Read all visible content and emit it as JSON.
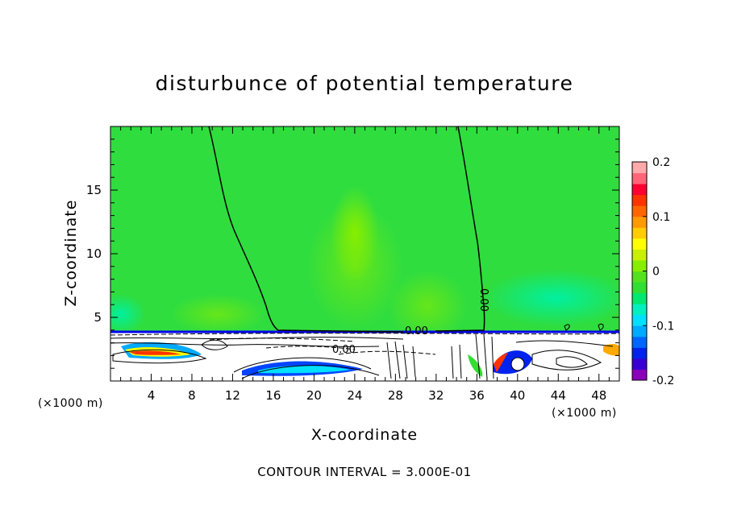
{
  "chart_data": {
    "type": "heatmap",
    "title": "disturbunce of potential temperature",
    "xlabel": "X-coordinate",
    "ylabel": "Z-coordinate",
    "x_unit": "(×1000 m)",
    "y_unit": "(×1000 m)",
    "xlim": [
      0,
      50
    ],
    "ylim": [
      0,
      20
    ],
    "x_ticks": [
      "4",
      "8",
      "12",
      "16",
      "20",
      "24",
      "28",
      "32",
      "36",
      "40",
      "44",
      "48"
    ],
    "y_ticks": [
      "5",
      "10",
      "15"
    ],
    "colorbar": {
      "range": [
        -0.2,
        0.2
      ],
      "tick_labels": [
        "0.2",
        "0.1",
        "0",
        "-0.1",
        "-0.2"
      ],
      "colors": [
        "#8a00b8",
        "#3a00d0",
        "#0022ee",
        "#0066ff",
        "#00aaff",
        "#00e0ff",
        "#00f0c0",
        "#00e870",
        "#33dd33",
        "#55e022",
        "#88ee00",
        "#c8f000",
        "#ffff00",
        "#ffcc00",
        "#ff9900",
        "#ff6600",
        "#ff3300",
        "#ff0033",
        "#ff6677",
        "#ffaaaa"
      ]
    },
    "contour_labels": [
      "0.00",
      "0.00",
      "0.00"
    ],
    "footer": "CONTOUR INTERVAL = 3.000E-01"
  }
}
